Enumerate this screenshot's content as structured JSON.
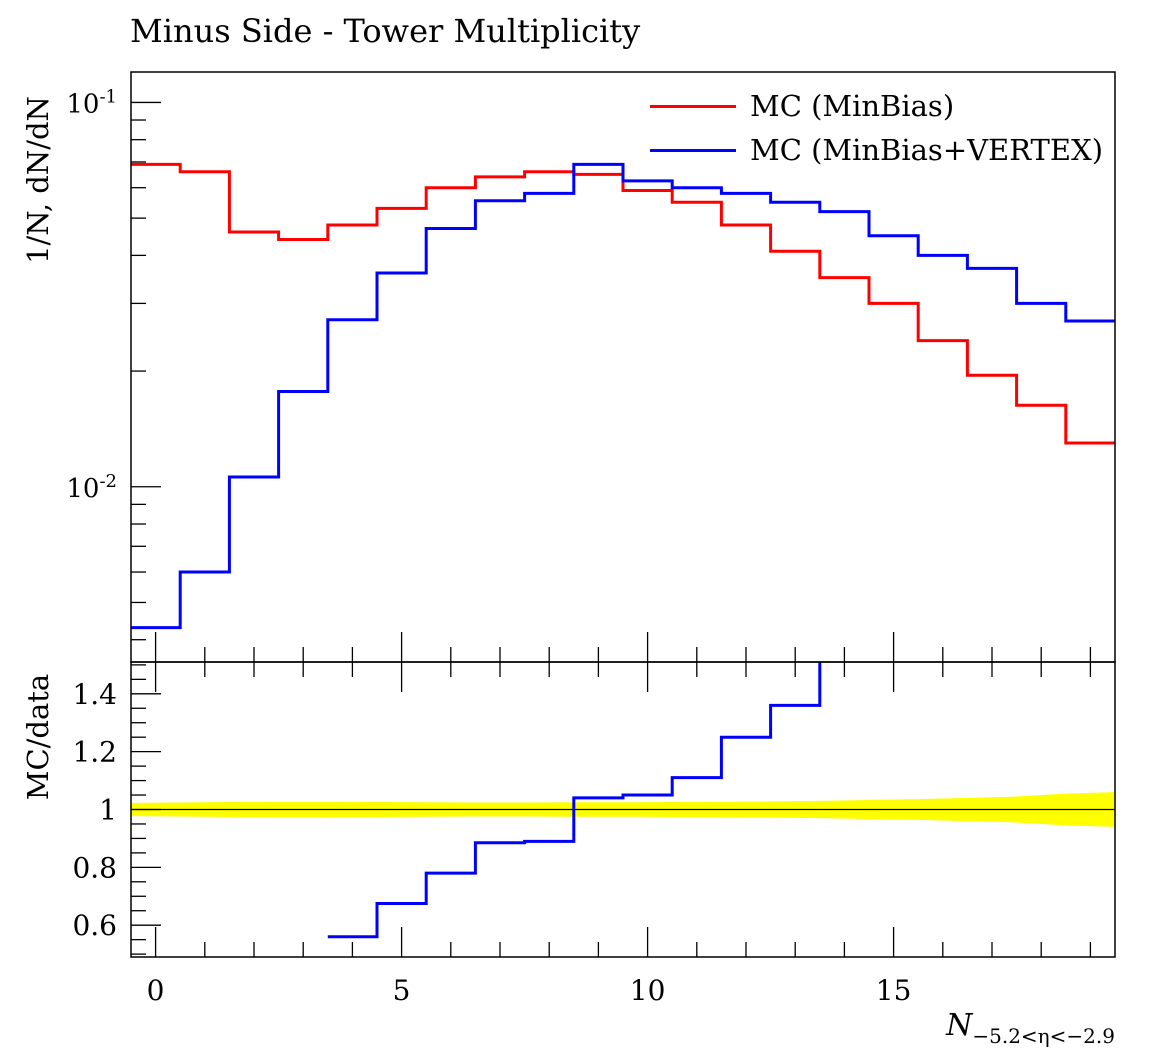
{
  "title": "Minus Side - Tower Multiplicity",
  "colors": {
    "mc_minbias": "#ff0000",
    "mc_minbias_vertex": "#0000ff",
    "uncertainty_band": "#ffff00"
  },
  "chart_data": [
    {
      "type": "line",
      "panel": "main",
      "ylabel": "1/N, dN/dN",
      "yscale": "log",
      "ylim": [
        0.0035,
        0.12
      ],
      "xlim": [
        -0.5,
        19.5
      ],
      "ytick_labels": [
        "10^{-2}",
        "10^{-1}"
      ],
      "ytick_values": [
        0.01,
        0.1
      ],
      "legend_position": "top-right",
      "bin_edges": [
        -0.5,
        0.5,
        1.5,
        2.5,
        3.5,
        4.5,
        5.5,
        6.5,
        7.5,
        8.5,
        9.5,
        10.5,
        11.5,
        12.5,
        13.5,
        14.5,
        15.5,
        16.5,
        17.5,
        18.5,
        19.5
      ],
      "series": [
        {
          "name": "MC (MinBias)",
          "color": "#ff0000",
          "values": [
            0.069,
            0.066,
            0.046,
            0.044,
            0.048,
            0.053,
            0.06,
            0.064,
            0.066,
            0.065,
            0.059,
            0.055,
            0.048,
            0.041,
            0.035,
            0.03,
            0.024,
            0.0195,
            0.0163,
            0.013
          ]
        },
        {
          "name": "MC (MinBias+VERTEX)",
          "color": "#0000ff",
          "values": [
            0.0043,
            0.006,
            0.0106,
            0.0177,
            0.0272,
            0.036,
            0.047,
            0.0555,
            0.058,
            0.069,
            0.0625,
            0.06,
            0.058,
            0.055,
            0.052,
            0.045,
            0.04,
            0.037,
            0.03,
            0.027
          ]
        }
      ]
    },
    {
      "type": "line",
      "panel": "ratio",
      "ylabel": "MC/data",
      "xlabel": "N",
      "xlabel_subscript": "−5.2<η<−2.9",
      "ylim": [
        0.49,
        1.51
      ],
      "xlim": [
        -0.5,
        19.5
      ],
      "ytick_values": [
        0.6,
        0.8,
        1,
        1.2,
        1.4
      ],
      "ytick_labels": [
        "0.6",
        "0.8",
        "1",
        "1.2",
        "1.4"
      ],
      "xtick_values": [
        0,
        5,
        10,
        15
      ],
      "xtick_labels": [
        "0",
        "5",
        "10",
        "15"
      ],
      "reference_line": 1,
      "band_halfwidth": [
        0.023,
        0.024,
        0.026,
        0.027,
        0.027,
        0.026,
        0.025,
        0.024,
        0.024,
        0.025,
        0.025,
        0.026,
        0.027,
        0.028,
        0.03,
        0.033,
        0.036,
        0.04,
        0.045,
        0.055,
        0.06
      ],
      "bin_edges": [
        -0.5,
        0.5,
        1.5,
        2.5,
        3.5,
        4.5,
        5.5,
        6.5,
        7.5,
        8.5,
        9.5,
        10.5,
        11.5,
        12.5,
        13.5,
        14.5,
        15.5,
        16.5,
        17.5,
        18.5,
        19.5
      ],
      "series": [
        {
          "name": "MC (MinBias+VERTEX)",
          "color": "#0000ff",
          "values": [
            null,
            null,
            null,
            null,
            0.56,
            0.675,
            0.78,
            0.885,
            0.89,
            1.04,
            1.05,
            1.11,
            1.25,
            1.36,
            1.56,
            null,
            null,
            null,
            null,
            null
          ]
        }
      ]
    }
  ]
}
